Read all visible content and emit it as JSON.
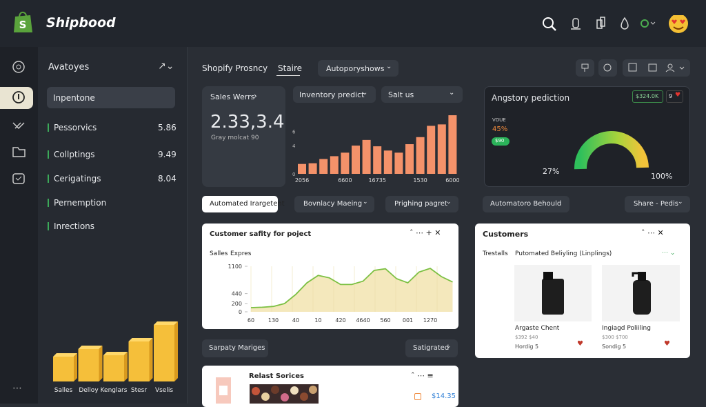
{
  "header": {
    "brand": "Shipbood"
  },
  "sidebar": {
    "title": "Avatoyes",
    "active": "Inpentone",
    "items": [
      {
        "label": "Pessorvics",
        "value": 5.86
      },
      {
        "label": "Collptings",
        "value": 9.49
      },
      {
        "label": "Cerigatings",
        "value": 8.04
      },
      {
        "label": "Pernemption"
      },
      {
        "label": "Inrections"
      }
    ]
  },
  "tabs": [
    "Shopify Prosncy",
    "Staire",
    "Autoporyshows"
  ],
  "sales_card": {
    "title": "Sales Werrs",
    "value": "2.33,3.4",
    "subtitle": "Gray molcat 90"
  },
  "filters": [
    "Inventory predict",
    "Salt us"
  ],
  "gauge_card": {
    "title": "Angstory pediction",
    "badge": "$324.0K",
    "badge_count": 9,
    "label": "VOUE",
    "percent": "45%",
    "pill": "$90",
    "min_label": "27%",
    "max_label": "100%"
  },
  "actions": [
    "Automated Irargetent",
    "Bovnlacy Maeing",
    "Prighing pagret",
    "Automatoro Behould",
    "Share - Pedis"
  ],
  "customers": {
    "title": "Customers",
    "tab": "Trestalls",
    "heading": "Putomated Beliyling (Linplings)",
    "products": [
      {
        "name": "Argaste Chent",
        "price": "$392 $40",
        "meta": "Hordig 5"
      },
      {
        "name": "Ingiagd Poliiling",
        "price": "$300 $700",
        "meta": "Sondig 5"
      }
    ]
  },
  "bottom": {
    "button": "Sarpaty Mariges",
    "dropdown": "Satigrated",
    "card_title": "Relast Sorices",
    "price": "$14.35"
  },
  "chart_data": [
    {
      "type": "bar",
      "categories": [
        "2056",
        null,
        null,
        null,
        "6600",
        null,
        null,
        "16735",
        null,
        null,
        null,
        "1530",
        null,
        null,
        "6000"
      ],
      "values": [
        1.4,
        1.5,
        2.1,
        2.5,
        3.0,
        4.0,
        4.8,
        3.9,
        3.3,
        3.0,
        4.2,
        5.2,
        6.8,
        7.0,
        8.3
      ],
      "color": "#f4926a",
      "ylim": [
        0,
        8.5
      ],
      "yticks": [
        0,
        4,
        6
      ]
    },
    {
      "type": "line",
      "title": "Customer safity for poject",
      "subtitle": "Salles",
      "ylabel": "Expres",
      "categories": [
        "60",
        null,
        "130",
        null,
        "40",
        null,
        "10",
        null,
        "420",
        null,
        "4640",
        null,
        "560",
        null,
        "001",
        null,
        "1270",
        null,
        null
      ],
      "series": [
        {
          "name": "Salles",
          "color": "#7cc043",
          "values": [
            100,
            110,
            130,
            200,
            420,
            700,
            880,
            820,
            660,
            660,
            740,
            1000,
            1040,
            800,
            700,
            960,
            1050,
            850,
            720
          ]
        }
      ],
      "ylim": [
        0,
        1100
      ],
      "yticks": [
        0,
        200,
        440,
        1100
      ]
    },
    {
      "type": "bar",
      "categories": [
        "Salles",
        "Delloy",
        "Kenglars",
        "Stesr",
        "Vselis"
      ],
      "values": [
        36,
        47,
        38,
        58,
        82
      ],
      "color": "#f5bf3a",
      "ylim": [
        0,
        100
      ]
    }
  ]
}
